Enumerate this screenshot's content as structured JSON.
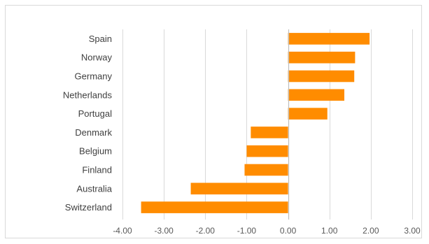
{
  "chart_data": {
    "type": "bar",
    "orientation": "horizontal",
    "title": "",
    "xlabel": "",
    "ylabel": "",
    "categories": [
      "Spain",
      "Norway",
      "Germany",
      "Netherlands",
      "Portugal",
      "Denmark",
      "Belgium",
      "Finland",
      "Australia",
      "Switzerland"
    ],
    "values": [
      1.97,
      1.62,
      1.6,
      1.36,
      0.95,
      -0.9,
      -1.0,
      -1.05,
      -2.35,
      -3.55
    ],
    "xlim": [
      -4,
      3
    ],
    "xticks": [
      -4,
      -3,
      -2,
      -1,
      0,
      1,
      2,
      3
    ],
    "xtick_labels": [
      "-4.00",
      "-3.00",
      "-2.00",
      "-1.00",
      "0.00",
      "1.00",
      "2.00",
      "3.00"
    ],
    "grid": "vertical",
    "legend": "none",
    "colors": {
      "bar": "#ff8c00",
      "grid": "#d9d9d9",
      "zero_axis": "#bfbfbf",
      "frame": "#d9d9d9"
    }
  }
}
